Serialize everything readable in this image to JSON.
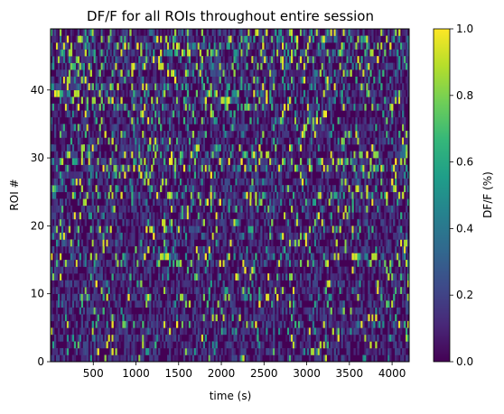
{
  "chart_data": {
    "type": "heatmap",
    "title": "DF/F for all ROIs throughout entire session",
    "xlabel": "time (s)",
    "ylabel": "ROI #",
    "xlim": [
      0,
      4200
    ],
    "ylim": [
      0,
      49
    ],
    "x_ticks": [
      500,
      1000,
      1500,
      2000,
      2500,
      3000,
      3500,
      4000
    ],
    "x_tick_labels": [
      "500",
      "1000",
      "1500",
      "2000",
      "2500",
      "3000",
      "3500",
      "4000"
    ],
    "y_ticks": [
      0,
      10,
      20,
      30,
      40
    ],
    "y_tick_labels": [
      "0",
      "10",
      "20",
      "30",
      "40"
    ],
    "rows": 49,
    "colormap": "viridis",
    "colorbar": {
      "label": "DF/F (%)",
      "range": [
        0.0,
        1.0
      ],
      "ticks": [
        0.0,
        0.2,
        0.4,
        0.6,
        0.8,
        1.0
      ],
      "tick_labels": [
        "0.0",
        "0.2",
        "0.4",
        "0.6",
        "0.8",
        "1.0"
      ]
    },
    "row_activity": [
      0.12,
      0.18,
      0.15,
      0.2,
      0.22,
      0.35,
      0.15,
      0.18,
      0.14,
      0.3,
      0.2,
      0.12,
      0.2,
      0.15,
      0.28,
      0.38,
      0.22,
      0.2,
      0.25,
      0.32,
      0.18,
      0.22,
      0.2,
      0.28,
      0.42,
      0.25,
      0.22,
      0.3,
      0.48,
      0.4,
      0.36,
      0.32,
      0.28,
      0.3,
      0.22,
      0.28,
      0.25,
      0.3,
      0.38,
      0.34,
      0.42,
      0.3,
      0.35,
      0.48,
      0.44,
      0.5,
      0.46,
      0.4,
      0.35
    ],
    "grid": false
  }
}
